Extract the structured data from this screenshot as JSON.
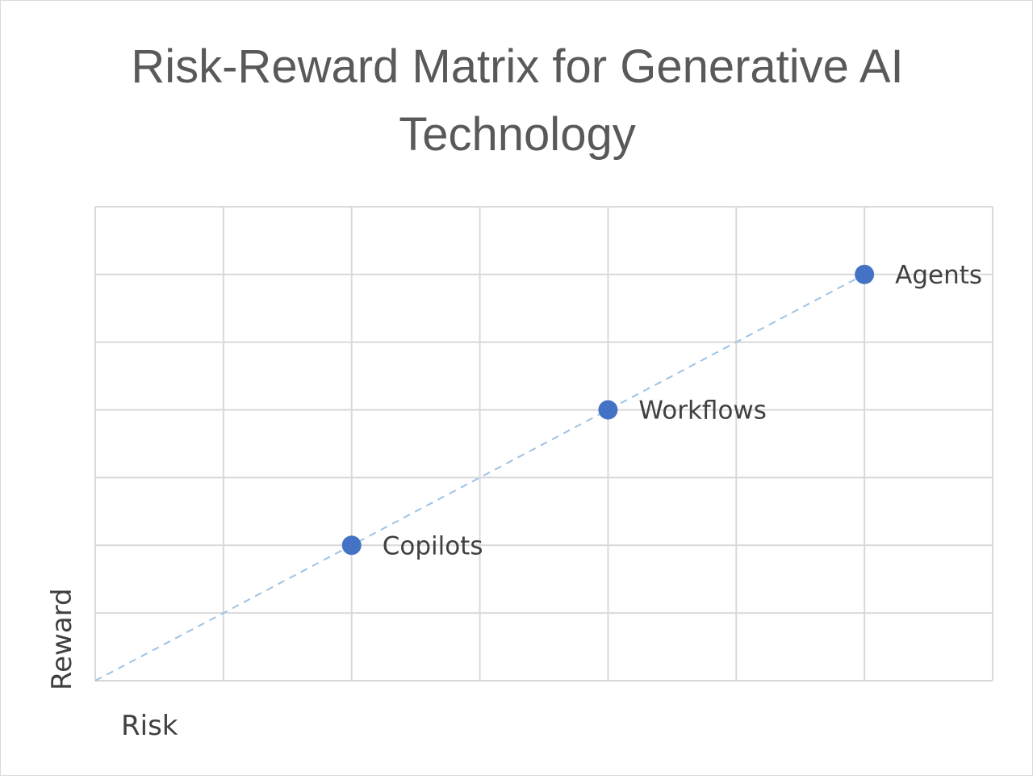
{
  "chart_data": {
    "type": "scatter",
    "title": "Risk-Reward Matrix for Generative AI Technology",
    "xlabel": "Risk",
    "ylabel": "Reward",
    "xlim": [
      0,
      7
    ],
    "ylim": [
      0,
      7
    ],
    "grid": true,
    "legend": "none",
    "trendline": {
      "style": "dashed",
      "color": "#9dc3e6"
    },
    "marker_color": "#4472c4",
    "points": [
      {
        "label": "Copilots",
        "x": 2,
        "y": 2
      },
      {
        "label": "Workflows",
        "x": 4,
        "y": 4
      },
      {
        "label": "Agents",
        "x": 6,
        "y": 6
      }
    ]
  }
}
